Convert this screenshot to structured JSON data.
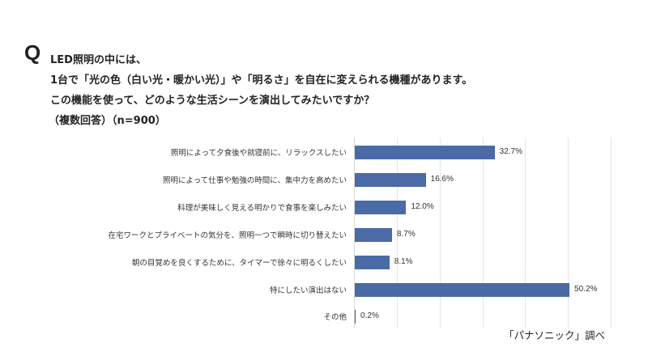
{
  "header": {
    "q_mark": "Q",
    "lines": [
      "LED照明の中には、",
      "1台で「光の色（白い光・暖かい光）」や「明るさ」を自在に変えられる機種があります。",
      "この機能を使って、どのような生活シーンを演出してみたいですか？",
      "（複数回答）（n=900）"
    ]
  },
  "chart_data": {
    "type": "bar",
    "orientation": "horizontal",
    "title": "LED照明の中には、1台で「光の色（白い光・暖かい光）」や「明るさ」を自在に変えられる機種があります。この機能を使って、どのような生活シーンを演出してみたいですか？（複数回答）（n=900）",
    "categories": [
      "照明によって夕食後や就寝前に、リラックスしたい",
      "照明によって仕事や勉強の時間に、集中力を高めたい",
      "料理が美味しく見える明かりで食事を楽しみたい",
      "在宅ワークとプライベートの気分を、照明一つで瞬時に切り替えたい",
      "朝の目覚めを良くするために、タイマーで徐々に明るくしたい",
      "特にしたい演出はない",
      "その他"
    ],
    "values": [
      32.7,
      16.6,
      12.0,
      8.7,
      8.1,
      50.2,
      0.2
    ],
    "value_labels": [
      "32.7%",
      "16.6%",
      "12.0%",
      "8.7%",
      "8.1%",
      "50.2%",
      "0.2%"
    ],
    "unit": "%",
    "xlabel": "",
    "ylabel": "",
    "xlim": [
      0,
      60
    ],
    "grid": true,
    "gridlines_at": [
      10,
      20,
      30,
      40,
      50,
      60
    ],
    "tick_labels_visible": false,
    "legend": null,
    "bar_color": "#4a6ba6",
    "source_note": "「パナソニック」調べ"
  },
  "footer": {
    "source": "「パナソニック」調べ"
  }
}
